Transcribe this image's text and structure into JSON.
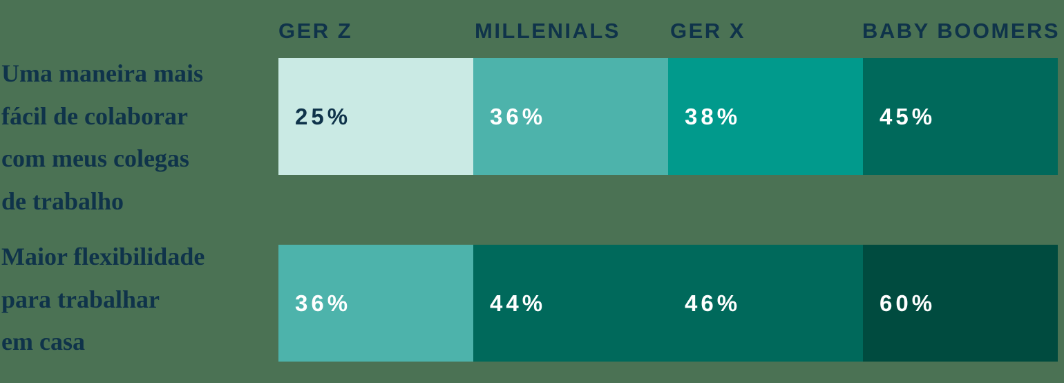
{
  "colors": {
    "background": "#4B7254",
    "navy_text": "#0F334A",
    "white_text": "#FFFFFF",
    "palette": {
      "mint": "#CAEAE4",
      "teal": "#4DB3AB",
      "medium_teal": "#019A8C",
      "dark_teal": "#00695B",
      "darkest_green": "#004B3F"
    }
  },
  "columns": [
    {
      "label": "GER Z"
    },
    {
      "label": "MILLENIALS"
    },
    {
      "label": "GER X"
    },
    {
      "label": "BABY BOOMERS"
    }
  ],
  "rows": [
    {
      "label": "Uma maneira mais fácil de colaborar com meus colegas de trabalho",
      "label_lines": [
        "Uma maneira mais",
        "fácil de colaborar",
        "com meus colegas",
        "de trabalho"
      ],
      "cells": [
        {
          "value": 25,
          "display": "25%",
          "bg": "#CAEAE4",
          "fg": "#0F334A"
        },
        {
          "value": 36,
          "display": "36%",
          "bg": "#4DB3AB",
          "fg": "#FFFFFF"
        },
        {
          "value": 38,
          "display": "38%",
          "bg": "#019A8C",
          "fg": "#FFFFFF"
        },
        {
          "value": 45,
          "display": "45%",
          "bg": "#00695B",
          "fg": "#FFFFFF"
        }
      ]
    },
    {
      "label": "Maior flexibilidade para trabalhar em casa",
      "label_lines": [
        "Maior flexibilidade",
        "para trabalhar",
        "em casa"
      ],
      "cells": [
        {
          "value": 36,
          "display": "36%",
          "bg": "#4DB3AB",
          "fg": "#FFFFFF"
        },
        {
          "value": 44,
          "display": "44%",
          "bg": "#00695B",
          "fg": "#FFFFFF"
        },
        {
          "value": 46,
          "display": "46%",
          "bg": "#00695B",
          "fg": "#FFFFFF"
        },
        {
          "value": 60,
          "display": "60%",
          "bg": "#004B3F",
          "fg": "#FFFFFF"
        }
      ]
    }
  ],
  "chart_data": {
    "type": "heatmap",
    "title": "",
    "categories": [
      "GER Z",
      "MILLENIALS",
      "GER X",
      "BABY BOOMERS"
    ],
    "row_labels": [
      "Uma maneira mais fácil de colaborar com meus colegas de trabalho",
      "Maior flexibilidade para trabalhar em casa"
    ],
    "series": [
      {
        "name": "Uma maneira mais fácil de colaborar com meus colegas de trabalho",
        "values": [
          25,
          36,
          38,
          45
        ]
      },
      {
        "name": "Maior flexibilidade para trabalhar em casa",
        "values": [
          36,
          44,
          46,
          60
        ]
      }
    ],
    "unit": "%",
    "value_labels_shown": true,
    "legend": "none",
    "layout": "two rows of four equal-width cells; darker fill encodes higher value; column headers above first row; row labels at left"
  }
}
